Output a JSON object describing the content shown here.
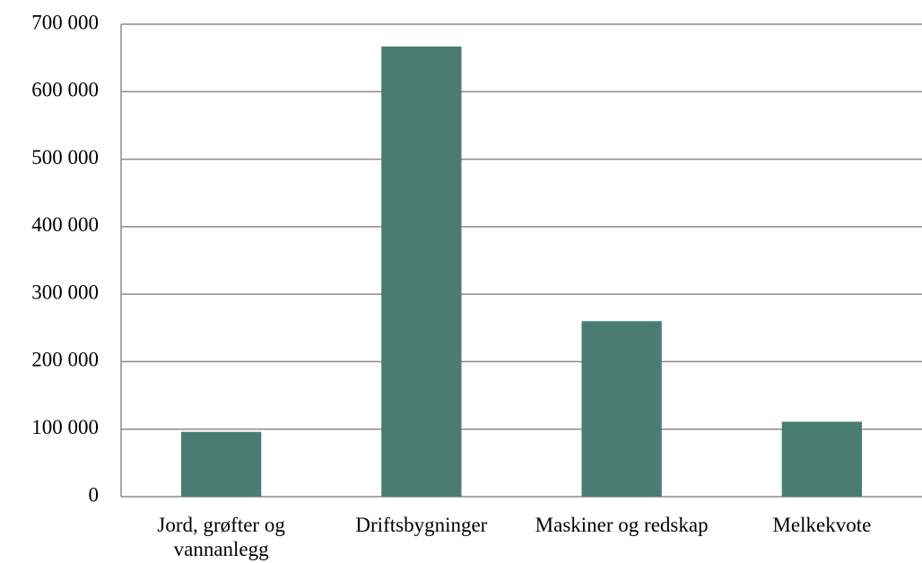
{
  "chart_data": {
    "type": "bar",
    "categories": [
      "Jord, grøfter og vannanlegg",
      "Driftsbygninger",
      "Maskiner og redskap",
      "Melkekvote"
    ],
    "values": [
      96000,
      667000,
      260000,
      111000
    ],
    "color": "#4a7c72",
    "ylim": [
      0,
      700000
    ],
    "yticks": [
      0,
      {
        "value": 100000,
        "label": "100 000"
      },
      {
        "value": 200000,
        "label": "200 000"
      },
      {
        "value": 300000,
        "label": "300 000"
      },
      {
        "value": 400000,
        "label": "400 000"
      },
      {
        "value": 500000,
        "label": "500 000"
      },
      {
        "value": 600000,
        "label": "600 000"
      },
      {
        "value": 700000,
        "label": "700 000"
      }
    ],
    "grid": true
  }
}
